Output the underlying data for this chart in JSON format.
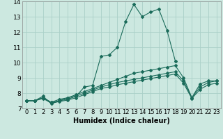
{
  "xlabel": "Humidex (Indice chaleur)",
  "xlim": [
    -0.5,
    23.5
  ],
  "ylim": [
    7,
    14
  ],
  "yticks": [
    7,
    8,
    9,
    10,
    11,
    12,
    13,
    14
  ],
  "xticks": [
    0,
    1,
    2,
    3,
    4,
    5,
    6,
    7,
    8,
    9,
    10,
    11,
    12,
    13,
    14,
    15,
    16,
    17,
    18,
    19,
    20,
    21,
    22,
    23
  ],
  "bg_color": "#cce8e0",
  "grid_color": "#aad0c8",
  "line_color": "#1a6b5a",
  "lines": [
    {
      "x": [
        0,
        1,
        2,
        3,
        4,
        5,
        6,
        7,
        8,
        9,
        10,
        11,
        12,
        13,
        14,
        15,
        16,
        17,
        18
      ],
      "y": [
        7.5,
        7.5,
        7.8,
        7.3,
        7.5,
        7.7,
        7.8,
        8.4,
        8.5,
        10.4,
        10.5,
        11.0,
        12.7,
        13.8,
        13.0,
        13.3,
        13.5,
        12.1,
        10.1
      ]
    },
    {
      "x": [
        0,
        1,
        2,
        3,
        4,
        5,
        6,
        7,
        8,
        9,
        10,
        11,
        12,
        13,
        14,
        15,
        16,
        17,
        18,
        19,
        20,
        21,
        22,
        23
      ],
      "y": [
        7.5,
        7.5,
        7.7,
        7.4,
        7.6,
        7.7,
        7.9,
        8.1,
        8.3,
        8.5,
        8.7,
        8.9,
        9.1,
        9.3,
        9.4,
        9.5,
        9.6,
        9.7,
        9.8,
        9.0,
        7.7,
        8.6,
        8.8,
        8.8
      ]
    },
    {
      "x": [
        0,
        1,
        2,
        3,
        4,
        5,
        6,
        7,
        8,
        9,
        10,
        11,
        12,
        13,
        14,
        15,
        16,
        17,
        18,
        19,
        20,
        21,
        22,
        23
      ],
      "y": [
        7.5,
        7.5,
        7.7,
        7.4,
        7.5,
        7.6,
        7.8,
        8.0,
        8.2,
        8.4,
        8.55,
        8.7,
        8.8,
        8.9,
        9.0,
        9.1,
        9.2,
        9.3,
        9.4,
        8.8,
        7.7,
        8.4,
        8.7,
        8.8
      ]
    },
    {
      "x": [
        0,
        1,
        2,
        3,
        4,
        5,
        6,
        7,
        8,
        9,
        10,
        11,
        12,
        13,
        14,
        15,
        16,
        17,
        18,
        19,
        20,
        21,
        22,
        23
      ],
      "y": [
        7.5,
        7.5,
        7.65,
        7.35,
        7.45,
        7.55,
        7.7,
        7.9,
        8.1,
        8.3,
        8.4,
        8.55,
        8.65,
        8.75,
        8.85,
        8.95,
        9.05,
        9.15,
        9.25,
        8.65,
        7.65,
        8.25,
        8.55,
        8.65
      ]
    }
  ],
  "tick_fontsize": 6,
  "xlabel_fontsize": 7
}
